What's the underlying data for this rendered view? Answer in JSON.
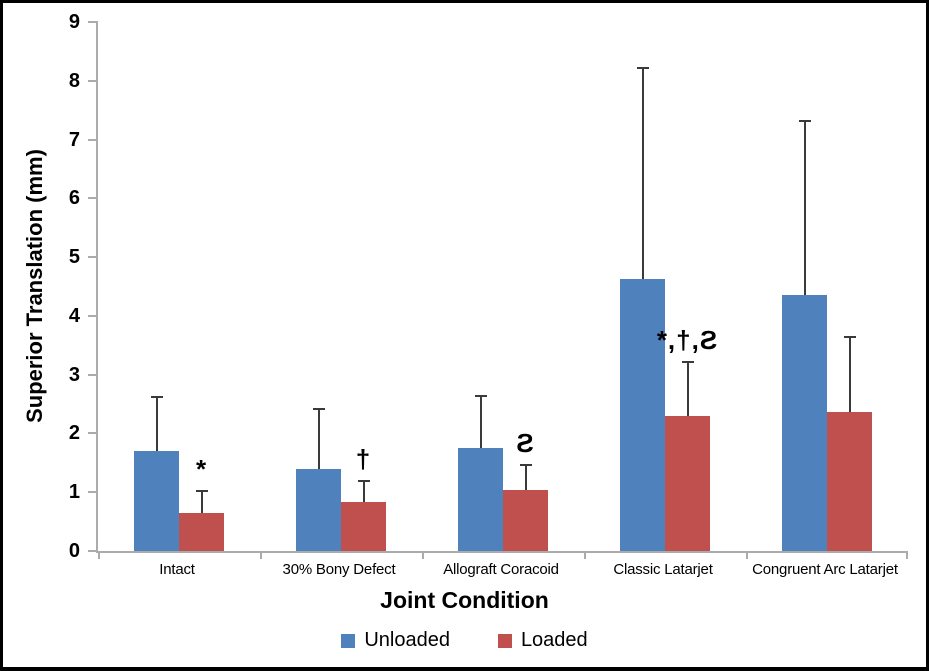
{
  "chart_data": {
    "type": "bar",
    "title": "",
    "xlabel": "Joint Condition",
    "ylabel": "Superior Translation (mm)",
    "ylim": [
      0,
      9
    ],
    "ytick_step": 1,
    "grid": false,
    "legend_position": "bottom",
    "background_color": "#FFFFFF",
    "axis_color": "#ABABAB",
    "error_bar_color": "#3A3A3A",
    "categories": [
      "Intact",
      "30% Bony Defect",
      "Allograft Coracoid",
      "Classic Latarjet",
      "Congruent Arc Latarjet"
    ],
    "series": [
      {
        "name": "Unloaded",
        "color": "#4F81BD",
        "values": [
          1.7,
          1.4,
          1.75,
          4.62,
          4.35
        ],
        "error_up": [
          0.9,
          1.0,
          0.87,
          3.58,
          2.95
        ]
      },
      {
        "name": "Loaded",
        "color": "#C0504D",
        "values": [
          0.65,
          0.83,
          1.03,
          2.3,
          2.36
        ],
        "error_up": [
          0.35,
          0.34,
          0.42,
          0.9,
          1.27
        ]
      }
    ],
    "annotations": [
      {
        "category": "Intact",
        "series": "Loaded",
        "text": "*"
      },
      {
        "category": "30% Bony Defect",
        "series": "Loaded",
        "text": "†"
      },
      {
        "category": "Allograft Coracoid",
        "series": "Loaded",
        "text": "Ƨ"
      },
      {
        "category": "Classic Latarjet",
        "series": "Loaded",
        "text": "*,†,Ƨ"
      }
    ]
  }
}
